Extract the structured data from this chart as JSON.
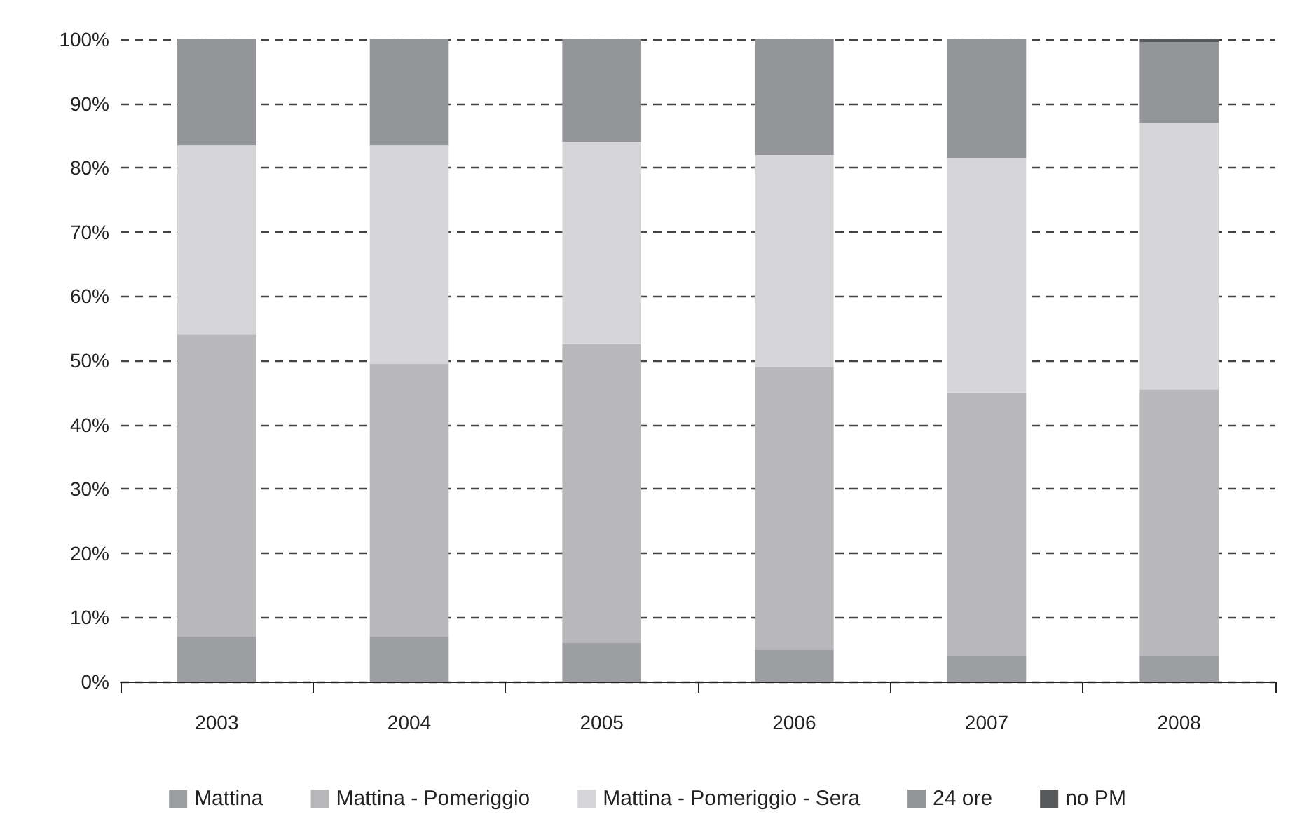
{
  "chart_data": {
    "type": "bar",
    "stacked": true,
    "categories": [
      "2003",
      "2004",
      "2005",
      "2006",
      "2007",
      "2008"
    ],
    "series": [
      {
        "name": "Mattina",
        "color": "#9d9ea1",
        "values": [
          7,
          7,
          6,
          5,
          4,
          4
        ]
      },
      {
        "name": "Mattina - Pomeriggio",
        "color": "#b8b8ba",
        "values": [
          47,
          42.5,
          46.5,
          44,
          41,
          41.5
        ]
      },
      {
        "name": "Mattina - Pomeriggio - Sera",
        "color": "#d6d6d8",
        "values": [
          29.5,
          34,
          31.5,
          33,
          36.5,
          41.5
        ]
      },
      {
        "name": "24 ore",
        "color": "#939598",
        "values": [
          16.5,
          16.5,
          16,
          18,
          18.5,
          12.5
        ]
      },
      {
        "name": "no PM",
        "color": "#58595b",
        "values": [
          0,
          0,
          0,
          0,
          0,
          0.5
        ]
      }
    ],
    "ylim": [
      0,
      100
    ],
    "yticks": [
      {
        "value": 0,
        "label": "0%"
      },
      {
        "value": 10,
        "label": "10%"
      },
      {
        "value": 20,
        "label": "20%"
      },
      {
        "value": 30,
        "label": "30%"
      },
      {
        "value": 40,
        "label": "40%"
      },
      {
        "value": 50,
        "label": "50%"
      },
      {
        "value": 60,
        "label": "60%"
      },
      {
        "value": 70,
        "label": "70%"
      },
      {
        "value": 80,
        "label": "80%"
      },
      {
        "value": 90,
        "label": "90%"
      },
      {
        "value": 100,
        "label": "100%"
      }
    ],
    "grid": "y",
    "legend": "bottom"
  }
}
